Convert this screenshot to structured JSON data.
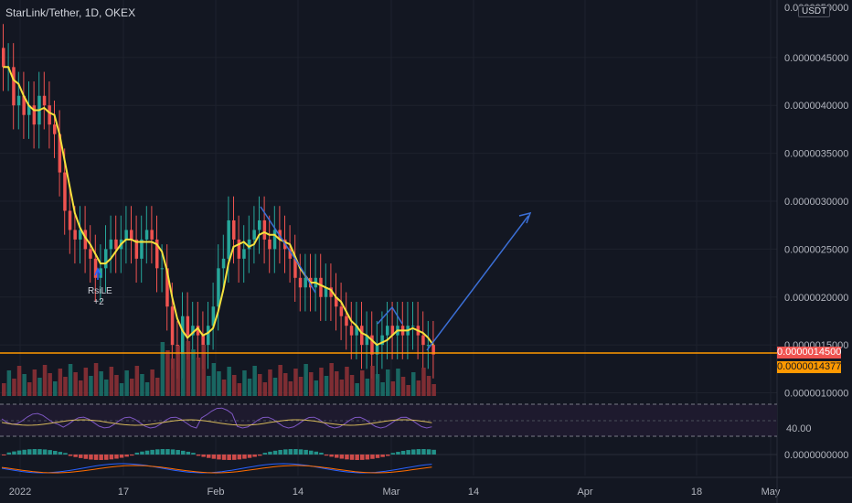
{
  "title": "StarLink/Tether, 1D, OKEX",
  "currency_button": "USDT",
  "annotation": {
    "label": "RsiLE",
    "value": "+2"
  },
  "price_axis": {
    "top_label": "0.0000050000",
    "labels": [
      "0.0000045000",
      "0.0000040000",
      "0.0000035000",
      "0.0000030000",
      "0.0000025000",
      "0.0000020000",
      "0.0000015000",
      "0.0000010000"
    ]
  },
  "current_price": "0.0000014500",
  "ma_value": "0.0000014377",
  "rsi_level": "40.00",
  "macd_level": "0.0000000000",
  "time_axis": [
    "2022",
    "17",
    "Feb",
    "14",
    "Mar",
    "14",
    "Apr",
    "18",
    "May"
  ],
  "colors": {
    "up": "#26a69a",
    "down": "#ef5350",
    "ma": "#f5e13d",
    "orange": "#ff9800",
    "projection": "#3b6fd6",
    "rsi": "#7e57c2"
  },
  "chart_data": {
    "type": "candlestick",
    "interval": "1D",
    "closes": [
      4.4e-06,
      4.4e-06,
      4e-06,
      4.1e-06,
      3.9e-06,
      4e-06,
      3.8e-06,
      4.1e-06,
      4e-06,
      3.8e-06,
      3.7e-06,
      3.3e-06,
      2.9e-06,
      2.7e-06,
      2.6e-06,
      2.7e-06,
      2.5e-06,
      2.4e-06,
      2.2e-06,
      2.3e-06,
      2.5e-06,
      2.6e-06,
      2.5e-06,
      2.6e-06,
      2.7e-06,
      2.6e-06,
      2.4e-06,
      2.6e-06,
      2.7e-06,
      2.6e-06,
      2.3e-06,
      2.3e-06,
      1.9e-06,
      1.5e-06,
      1.4e-06,
      1.8e-06,
      1.6e-06,
      1.7e-06,
      1.6e-06,
      1.5e-06,
      1.7e-06,
      1.9e-06,
      2.3e-06,
      2.4e-06,
      2.8e-06,
      2.6e-06,
      2.4e-06,
      2.5e-06,
      2.6e-06,
      2.7e-06,
      2.8e-06,
      2.6e-06,
      2.5e-06,
      2.7e-06,
      2.6e-06,
      2.5e-06,
      2.4e-06,
      2.2e-06,
      2.1e-06,
      2.2e-06,
      2.1e-06,
      2.2e-06,
      2e-06,
      2.1e-06,
      2e-06,
      1.9e-06,
      1.8e-06,
      1.7e-06,
      1.6e-06,
      1.7e-06,
      1.5e-06,
      1.6e-06,
      1.4e-06,
      1.5e-06,
      1.6e-06,
      1.7e-06,
      1.6e-06,
      1.7e-06,
      1.6e-06,
      1.7e-06,
      1.7e-06,
      1.6e-06,
      1.5e-06,
      1.5e-06,
      1.4e-06
    ],
    "volume_colors_up_flags": [
      0,
      1,
      0,
      0,
      1,
      0,
      0,
      1,
      0,
      0,
      1,
      0,
      0,
      1,
      0,
      0,
      0,
      1,
      0,
      1,
      1,
      0,
      0,
      1,
      1,
      0,
      0,
      1,
      1,
      0,
      0,
      1,
      0,
      0,
      0,
      1,
      0,
      1,
      0,
      0,
      1,
      1,
      1,
      0,
      1,
      0,
      0,
      1,
      1,
      1,
      0,
      0,
      0,
      1,
      0,
      0,
      0,
      0,
      0,
      1,
      0,
      1,
      0,
      1,
      0,
      0,
      0,
      0,
      0,
      1,
      0,
      1,
      0,
      1,
      1,
      1,
      0,
      1,
      0,
      0,
      1,
      0,
      0,
      0,
      0
    ],
    "y_range": [
      9e-07,
      5.1e-06
    ],
    "projection_path": [
      [
        3e-06,
        "Feb 7"
      ],
      [
        1.4e-06,
        "Mar 7"
      ],
      [
        2.9e-06,
        "Mar 23"
      ]
    ]
  }
}
